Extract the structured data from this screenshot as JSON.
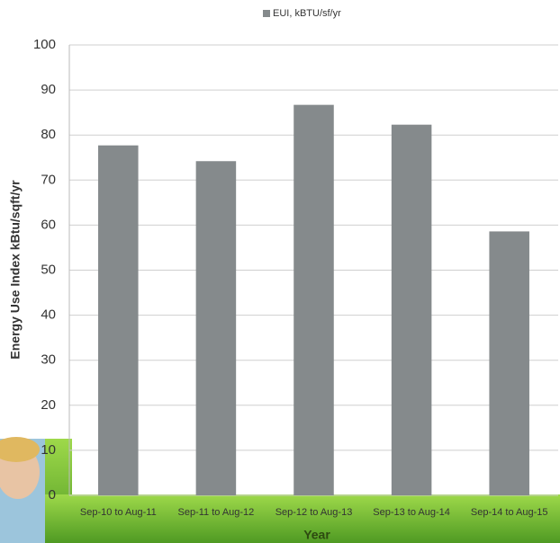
{
  "chart_data": {
    "type": "bar",
    "legend_label": "EUI, kBTU/sf/yr",
    "y_axis_label": "Energy Use Index kBtu/sqft/yr",
    "x_axis_label": "Year",
    "categories": [
      "Sep-10 to Aug-11",
      "Sep-11 to Aug-12",
      "Sep-12 to Aug-13",
      "Sep-13 to Aug-14",
      "Sep-14 to Aug-15"
    ],
    "values": [
      77.7,
      74.2,
      86.7,
      82.3,
      58.6
    ],
    "color": "#858a8c",
    "ylim": [
      0,
      100
    ],
    "yticks": [
      0,
      10,
      20,
      30,
      40,
      50,
      60,
      70,
      80,
      90,
      100
    ],
    "grid": true
  }
}
